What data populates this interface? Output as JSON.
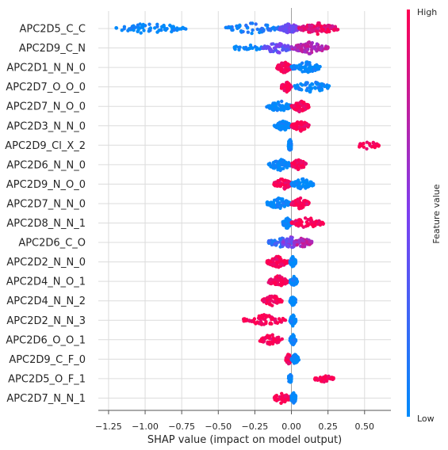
{
  "chart_data": {
    "type": "scatter",
    "subtype": "shap-beeswarm",
    "title": "",
    "xlabel": "SHAP value (impact on model output)",
    "ylabel": "",
    "xlim": [
      -1.32,
      0.68
    ],
    "xticks": [
      -1.25,
      -1.0,
      -0.75,
      -0.5,
      -0.25,
      0.0,
      0.25,
      0.5
    ],
    "xtick_labels": [
      "−1.25",
      "−1.00",
      "−0.75",
      "−0.50",
      "−0.25",
      "0.00",
      "0.25",
      "0.50"
    ],
    "grid": true,
    "colorbar": {
      "label": "Feature value",
      "high_label": "High",
      "low_label": "Low",
      "low_color": "#008bfb",
      "high_color": "#ff0052"
    },
    "features": [
      {
        "name": "APC2D5_C_C",
        "clusters": [
          [
            -1.2,
            -0.72,
            0.0,
            70
          ],
          [
            -0.45,
            -0.08,
            0.1,
            60
          ],
          [
            -0.08,
            0.05,
            0.45,
            60
          ],
          [
            0.05,
            0.32,
            0.9,
            120
          ]
        ]
      },
      {
        "name": "APC2D9_C_N",
        "clusters": [
          [
            -0.4,
            -0.2,
            0.0,
            25
          ],
          [
            -0.2,
            0.0,
            0.4,
            70
          ],
          [
            0.0,
            0.25,
            0.7,
            90
          ]
        ]
      },
      {
        "name": "APC2D1_N_N_0",
        "clusters": [
          [
            -0.1,
            0.0,
            1.0,
            80
          ],
          [
            0.0,
            0.2,
            0.0,
            80
          ]
        ]
      },
      {
        "name": "APC2D7_O_O_0",
        "clusters": [
          [
            -0.07,
            0.0,
            1.0,
            55
          ],
          [
            0.02,
            0.26,
            0.0,
            70
          ]
        ]
      },
      {
        "name": "APC2D7_N_O_0",
        "clusters": [
          [
            -0.17,
            0.0,
            0.0,
            70
          ],
          [
            0.0,
            0.12,
            1.0,
            80
          ]
        ]
      },
      {
        "name": "APC2D3_N_N_0",
        "clusters": [
          [
            -0.12,
            0.0,
            0.0,
            50
          ],
          [
            0.0,
            0.12,
            1.0,
            70
          ]
        ]
      },
      {
        "name": "APC2D9_Cl_X_2",
        "clusters": [
          [
            -0.02,
            0.0,
            0.0,
            70
          ],
          [
            0.45,
            0.6,
            1.0,
            35
          ]
        ]
      },
      {
        "name": "APC2D6_N_N_0",
        "clusters": [
          [
            -0.16,
            0.0,
            0.0,
            70
          ],
          [
            0.0,
            0.1,
            1.0,
            70
          ]
        ]
      },
      {
        "name": "APC2D9_N_O_0",
        "clusters": [
          [
            -0.12,
            0.0,
            1.0,
            70
          ],
          [
            0.0,
            0.15,
            0.0,
            80
          ]
        ]
      },
      {
        "name": "APC2D7_N_N_0",
        "clusters": [
          [
            -0.17,
            0.0,
            0.0,
            70
          ],
          [
            0.0,
            0.12,
            1.0,
            75
          ]
        ]
      },
      {
        "name": "APC2D8_N_N_1",
        "clusters": [
          [
            -0.06,
            0.0,
            0.0,
            60
          ],
          [
            0.0,
            0.22,
            1.0,
            70
          ]
        ]
      },
      {
        "name": "APC2D6_C_O",
        "clusters": [
          [
            -0.16,
            0.0,
            0.2,
            60
          ],
          [
            -0.06,
            0.05,
            0.5,
            80
          ],
          [
            0.02,
            0.14,
            0.7,
            50
          ]
        ]
      },
      {
        "name": "APC2D2_N_N_0",
        "clusters": [
          [
            -0.17,
            -0.02,
            1.0,
            75
          ],
          [
            -0.01,
            0.03,
            0.0,
            55
          ]
        ]
      },
      {
        "name": "APC2D4_N_O_1",
        "clusters": [
          [
            -0.16,
            -0.02,
            1.0,
            70
          ],
          [
            -0.01,
            0.04,
            0.0,
            55
          ]
        ]
      },
      {
        "name": "APC2D4_N_N_2",
        "clusters": [
          [
            -0.2,
            -0.06,
            1.0,
            60
          ],
          [
            -0.01,
            0.03,
            0.0,
            50
          ]
        ]
      },
      {
        "name": "APC2D2_N_N_3",
        "clusters": [
          [
            -0.33,
            -0.04,
            1.0,
            75
          ],
          [
            -0.01,
            0.03,
            0.0,
            60
          ]
        ]
      },
      {
        "name": "APC2D6_O_O_1",
        "clusters": [
          [
            -0.22,
            -0.06,
            1.0,
            55
          ],
          [
            -0.01,
            0.03,
            0.0,
            55
          ]
        ]
      },
      {
        "name": "APC2D9_C_F_0",
        "clusters": [
          [
            -0.04,
            0.0,
            1.0,
            55
          ],
          [
            0.0,
            0.05,
            0.0,
            50
          ]
        ]
      },
      {
        "name": "APC2D5_O_F_1",
        "clusters": [
          [
            -0.02,
            0.0,
            0.0,
            40
          ],
          [
            0.16,
            0.29,
            1.0,
            35
          ]
        ]
      },
      {
        "name": "APC2D7_N_N_1",
        "clusters": [
          [
            -0.12,
            -0.01,
            1.0,
            55
          ],
          [
            0.0,
            0.03,
            0.0,
            55
          ]
        ]
      }
    ]
  }
}
